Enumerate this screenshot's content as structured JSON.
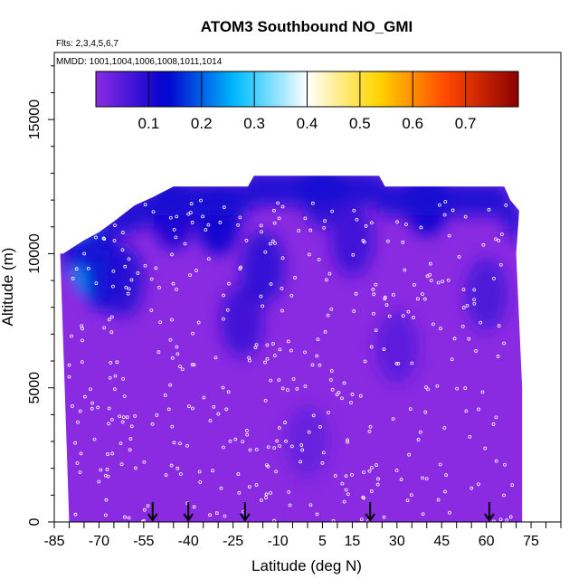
{
  "chart_data": {
    "type": "heatmap",
    "title": "ATOM3 Southbound NO_GMI",
    "flights_note": "Flts: 2,3,4,5,6,7",
    "dates_note": "MMDD: 1001,1004,1006,1008,1011,1014",
    "xlabel": "Latitude (deg N)",
    "ylabel": "Altitude (m)",
    "xlim": [
      -85,
      85
    ],
    "ylim": [
      0,
      17500
    ],
    "x_ticks": [
      -85,
      -70,
      -55,
      -40,
      -25,
      -10,
      5,
      15,
      30,
      45,
      60,
      75
    ],
    "y_ticks": [
      0,
      5000,
      10000,
      15000
    ],
    "colorbar": {
      "ticks": [
        0.1,
        0.2,
        0.3,
        0.4,
        0.5,
        0.6,
        0.7
      ],
      "range": [
        0,
        0.8
      ],
      "colors": [
        "#8a2be2",
        "#0000cd",
        "#00bfff",
        "#ffffff",
        "#ffd700",
        "#ff4500",
        "#8b0000"
      ]
    },
    "arrows_lat": [
      -52,
      -40,
      -21,
      21,
      61
    ],
    "top_profile": [
      {
        "lat": -82,
        "alt": 10000
      },
      {
        "lat": -75,
        "alt": 10500
      },
      {
        "lat": -70,
        "alt": 10800
      },
      {
        "lat": -65,
        "alt": 11200
      },
      {
        "lat": -58,
        "alt": 11800
      },
      {
        "lat": -52,
        "alt": 12100
      },
      {
        "lat": -45,
        "alt": 12500
      },
      {
        "lat": -30,
        "alt": 12500
      },
      {
        "lat": -20,
        "alt": 12500
      },
      {
        "lat": -18,
        "alt": 12900
      },
      {
        "lat": 0,
        "alt": 12900
      },
      {
        "lat": 24,
        "alt": 12900
      },
      {
        "lat": 26,
        "alt": 12500
      },
      {
        "lat": 66,
        "alt": 12500
      },
      {
        "lat": 68,
        "alt": 12000
      },
      {
        "lat": 71,
        "alt": 11600
      }
    ],
    "bottom_left": [
      {
        "alt": 0,
        "lat": -80
      },
      {
        "alt": 10000,
        "lat": -83
      }
    ],
    "right_edge": [
      {
        "alt": 0,
        "lat": 72
      },
      {
        "alt": 5000,
        "lat": 72
      },
      {
        "alt": 10000,
        "lat": 70
      },
      {
        "alt": 11600,
        "lat": 71
      }
    ],
    "features": [
      {
        "lat": -72,
        "alt": 9700,
        "value": 0.26
      },
      {
        "lat": -68,
        "alt": 9200,
        "value": 0.14
      },
      {
        "lat": -62,
        "alt": 9000,
        "value": 0.1
      },
      {
        "lat": -45,
        "alt": 11500,
        "value": 0.12
      },
      {
        "lat": -30,
        "alt": 11300,
        "value": 0.13
      },
      {
        "lat": -22,
        "alt": 7500,
        "value": 0.08
      },
      {
        "lat": -15,
        "alt": 9500,
        "value": 0.1
      },
      {
        "lat": 5,
        "alt": 12300,
        "value": 0.1
      },
      {
        "lat": 15,
        "alt": 10500,
        "value": 0.08
      },
      {
        "lat": 40,
        "alt": 12000,
        "value": 0.13
      },
      {
        "lat": 60,
        "alt": 8500,
        "value": 0.07
      },
      {
        "lat": 30,
        "alt": 6500,
        "value": 0.05
      },
      {
        "lat": 0,
        "alt": 3000,
        "value": 0.04
      }
    ]
  },
  "colors": {
    "background": "#8a2be2",
    "text": "#000000"
  }
}
